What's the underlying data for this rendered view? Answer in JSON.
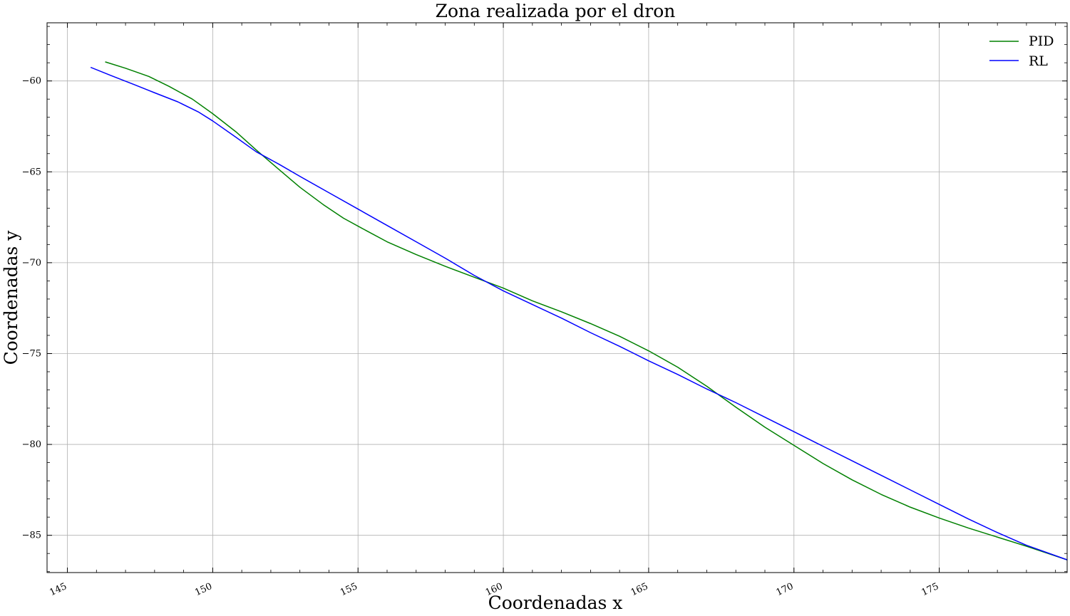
{
  "chart_data": {
    "type": "line",
    "title": "Zona realizada por el dron",
    "xlabel": "Coordenadas x",
    "ylabel": "Coordenadas y",
    "xlim": [
      144.3,
      179.4
    ],
    "ylim": [
      -87.05,
      -56.8
    ],
    "xticks": [
      145,
      150,
      155,
      160,
      165,
      170,
      175
    ],
    "xtick_labels": [
      "145",
      "150",
      "155",
      "160",
      "165",
      "170",
      "175"
    ],
    "yticks": [
      -60,
      -65,
      -70,
      -75,
      -80,
      -85
    ],
    "ytick_labels": [
      "−60",
      "−65",
      "−70",
      "−75",
      "−80",
      "−85"
    ],
    "grid": true,
    "legend_position": "top-right",
    "series": [
      {
        "name": "PID",
        "color": "#008000",
        "points": [
          [
            146.3,
            -58.95
          ],
          [
            147.0,
            -59.3
          ],
          [
            147.8,
            -59.75
          ],
          [
            148.5,
            -60.3
          ],
          [
            149.3,
            -61.0
          ],
          [
            150.0,
            -61.8
          ],
          [
            150.8,
            -62.8
          ],
          [
            151.5,
            -63.8
          ],
          [
            152.3,
            -64.9
          ],
          [
            153.0,
            -65.85
          ],
          [
            153.8,
            -66.8
          ],
          [
            154.5,
            -67.55
          ],
          [
            155.3,
            -68.25
          ],
          [
            156.0,
            -68.85
          ],
          [
            157.0,
            -69.55
          ],
          [
            158.0,
            -70.2
          ],
          [
            159.0,
            -70.8
          ],
          [
            160.0,
            -71.4
          ],
          [
            161.0,
            -72.1
          ],
          [
            162.0,
            -72.7
          ],
          [
            163.0,
            -73.35
          ],
          [
            164.0,
            -74.05
          ],
          [
            165.0,
            -74.85
          ],
          [
            166.0,
            -75.75
          ],
          [
            167.0,
            -76.8
          ],
          [
            168.0,
            -77.95
          ],
          [
            169.0,
            -79.05
          ],
          [
            170.0,
            -80.05
          ],
          [
            171.0,
            -81.05
          ],
          [
            172.0,
            -81.95
          ],
          [
            173.0,
            -82.75
          ],
          [
            174.0,
            -83.45
          ],
          [
            175.0,
            -84.05
          ],
          [
            176.0,
            -84.6
          ],
          [
            177.0,
            -85.1
          ],
          [
            178.0,
            -85.6
          ],
          [
            179.4,
            -86.35
          ]
        ]
      },
      {
        "name": "RL",
        "color": "#0000ff",
        "points": [
          [
            145.8,
            -59.25
          ],
          [
            146.5,
            -59.7
          ],
          [
            147.3,
            -60.2
          ],
          [
            148.0,
            -60.65
          ],
          [
            148.8,
            -61.15
          ],
          [
            149.5,
            -61.7
          ],
          [
            150.0,
            -62.2
          ],
          [
            150.8,
            -63.1
          ],
          [
            151.5,
            -63.9
          ],
          [
            152.3,
            -64.6
          ],
          [
            153.0,
            -65.25
          ],
          [
            154.0,
            -66.15
          ],
          [
            155.0,
            -67.05
          ],
          [
            156.0,
            -67.95
          ],
          [
            157.0,
            -68.85
          ],
          [
            158.0,
            -69.75
          ],
          [
            159.0,
            -70.7
          ],
          [
            160.0,
            -71.55
          ],
          [
            161.0,
            -72.3
          ],
          [
            162.0,
            -73.05
          ],
          [
            163.0,
            -73.85
          ],
          [
            164.0,
            -74.6
          ],
          [
            165.0,
            -75.4
          ],
          [
            166.0,
            -76.15
          ],
          [
            167.0,
            -76.95
          ],
          [
            168.0,
            -77.7
          ],
          [
            169.0,
            -78.5
          ],
          [
            170.0,
            -79.3
          ],
          [
            171.0,
            -80.1
          ],
          [
            172.0,
            -80.9
          ],
          [
            173.0,
            -81.7
          ],
          [
            174.0,
            -82.5
          ],
          [
            175.0,
            -83.3
          ],
          [
            176.0,
            -84.1
          ],
          [
            177.0,
            -84.85
          ],
          [
            178.0,
            -85.55
          ],
          [
            179.4,
            -86.35
          ]
        ]
      }
    ]
  }
}
